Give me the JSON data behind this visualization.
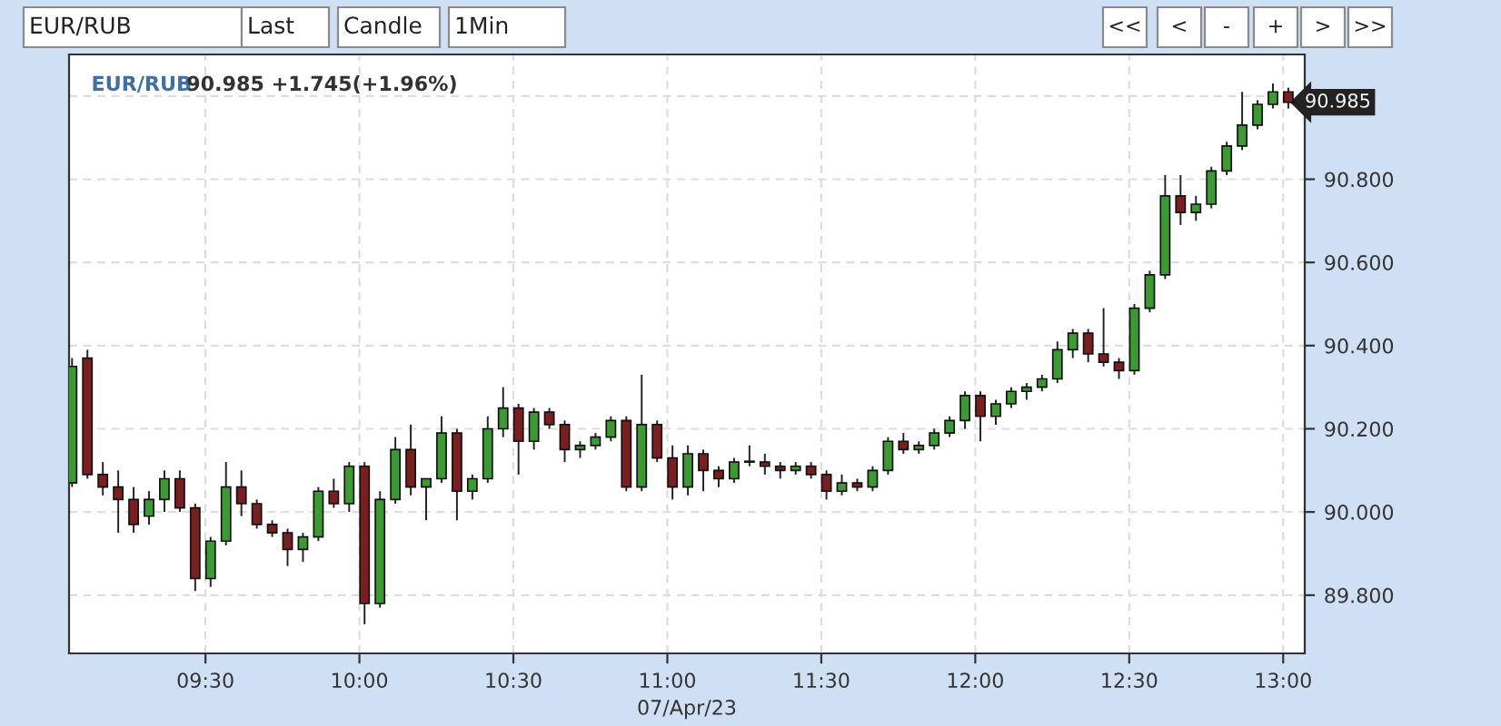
{
  "chart_data": {
    "type": "candlestick",
    "title": "EUR/RUB",
    "subtitle": "90.985 +1.745(+1.96%)",
    "xlabel": "07/Apr/23",
    "annotations": [
      "EUR/RUB",
      "Last",
      "Candle",
      "1Min",
      "<<",
      "<",
      "-",
      "+",
      ">",
      ">>",
      {
        "text": "90.985",
        "x": 13.0167,
        "y": 90.985
      }
    ],
    "x": [
      9.0667,
      9.1167,
      9.1667,
      9.2167,
      9.2667,
      9.3167,
      9.3667,
      9.4167,
      9.4667,
      9.5167,
      9.5667,
      9.6167,
      9.6667,
      9.7167,
      9.7667,
      9.8167,
      9.8667,
      9.9167,
      9.9667,
      10.0167,
      10.0667,
      10.1167,
      10.1667,
      10.2167,
      10.2667,
      10.3167,
      10.3667,
      10.4167,
      10.4667,
      10.5167,
      10.5667,
      10.6167,
      10.6667,
      10.7167,
      10.7667,
      10.8167,
      10.8667,
      10.9167,
      10.9667,
      11.0167,
      11.0667,
      11.1167,
      11.1667,
      11.2167,
      11.2667,
      11.3167,
      11.3667,
      11.4167,
      11.4667,
      11.5167,
      11.5667,
      11.6167,
      11.6667,
      11.7167,
      11.7667,
      11.8167,
      11.8667,
      11.9167,
      11.9667,
      12.0167,
      12.0667,
      12.1167,
      12.1667,
      12.2167,
      12.2667,
      12.3167,
      12.3667,
      12.4167,
      12.4667,
      12.5167,
      12.5667,
      12.6167,
      12.6667,
      12.7167,
      12.7667,
      12.8167,
      12.8667,
      12.9167,
      12.9667,
      13.0167
    ],
    "ohlc": [
      [
        90.07,
        90.37,
        90.06,
        90.35
      ],
      [
        90.37,
        90.39,
        90.08,
        90.09
      ],
      [
        90.09,
        90.12,
        90.04,
        90.06
      ],
      [
        90.06,
        90.1,
        89.95,
        90.03
      ],
      [
        90.03,
        90.06,
        89.95,
        89.97
      ],
      [
        89.99,
        90.05,
        89.97,
        90.03
      ],
      [
        90.03,
        90.1,
        90.0,
        90.08
      ],
      [
        90.08,
        90.1,
        90.0,
        90.01
      ],
      [
        90.01,
        90.02,
        89.81,
        89.84
      ],
      [
        89.84,
        89.94,
        89.82,
        89.93
      ],
      [
        89.93,
        90.12,
        89.92,
        90.06
      ],
      [
        90.06,
        90.1,
        89.99,
        90.02
      ],
      [
        90.02,
        90.03,
        89.96,
        89.97
      ],
      [
        89.97,
        89.98,
        89.94,
        89.95
      ],
      [
        89.95,
        89.96,
        89.87,
        89.91
      ],
      [
        89.91,
        89.95,
        89.88,
        89.94
      ],
      [
        89.94,
        90.06,
        89.93,
        90.05
      ],
      [
        90.05,
        90.08,
        90.01,
        90.02
      ],
      [
        90.02,
        90.12,
        90.0,
        90.11
      ],
      [
        90.11,
        90.12,
        89.73,
        89.78
      ],
      [
        89.78,
        90.05,
        89.77,
        90.03
      ],
      [
        90.03,
        90.18,
        90.02,
        90.15
      ],
      [
        90.15,
        90.21,
        90.04,
        90.06
      ],
      [
        90.06,
        90.08,
        89.98,
        90.08
      ],
      [
        90.08,
        90.23,
        90.07,
        90.19
      ],
      [
        90.19,
        90.2,
        89.98,
        90.05
      ],
      [
        90.05,
        90.09,
        90.03,
        90.08
      ],
      [
        90.08,
        90.23,
        90.07,
        90.2
      ],
      [
        90.2,
        90.3,
        90.18,
        90.25
      ],
      [
        90.25,
        90.26,
        90.09,
        90.17
      ],
      [
        90.17,
        90.25,
        90.15,
        90.24
      ],
      [
        90.24,
        90.25,
        90.2,
        90.21
      ],
      [
        90.21,
        90.22,
        90.12,
        90.15
      ],
      [
        90.15,
        90.17,
        90.13,
        90.16
      ],
      [
        90.16,
        90.19,
        90.15,
        90.18
      ],
      [
        90.18,
        90.23,
        90.17,
        90.22
      ],
      [
        90.22,
        90.23,
        90.05,
        90.06
      ],
      [
        90.06,
        90.33,
        90.05,
        90.21
      ],
      [
        90.21,
        90.22,
        90.12,
        90.13
      ],
      [
        90.13,
        90.16,
        90.03,
        90.06
      ],
      [
        90.06,
        90.16,
        90.04,
        90.14
      ],
      [
        90.14,
        90.15,
        90.05,
        90.1
      ],
      [
        90.1,
        90.11,
        90.06,
        90.08
      ],
      [
        90.08,
        90.13,
        90.07,
        90.12
      ],
      [
        90.12,
        90.16,
        90.11,
        90.12
      ],
      [
        90.12,
        90.14,
        90.09,
        90.11
      ],
      [
        90.11,
        90.12,
        90.08,
        90.1
      ],
      [
        90.1,
        90.12,
        90.09,
        90.11
      ],
      [
        90.11,
        90.12,
        90.08,
        90.09
      ],
      [
        90.09,
        90.1,
        90.03,
        90.05
      ],
      [
        90.05,
        90.09,
        90.04,
        90.07
      ],
      [
        90.07,
        90.08,
        90.05,
        90.06
      ],
      [
        90.06,
        90.11,
        90.05,
        90.1
      ],
      [
        90.1,
        90.18,
        90.09,
        90.17
      ],
      [
        90.17,
        90.19,
        90.14,
        90.15
      ],
      [
        90.15,
        90.17,
        90.14,
        90.16
      ],
      [
        90.16,
        90.2,
        90.15,
        90.19
      ],
      [
        90.19,
        90.23,
        90.18,
        90.22
      ],
      [
        90.22,
        90.29,
        90.2,
        90.28
      ],
      [
        90.28,
        90.29,
        90.17,
        90.23
      ],
      [
        90.23,
        90.27,
        90.21,
        90.26
      ],
      [
        90.26,
        90.3,
        90.25,
        90.29
      ],
      [
        90.29,
        90.31,
        90.27,
        90.3
      ],
      [
        90.3,
        90.33,
        90.29,
        90.32
      ],
      [
        90.32,
        90.41,
        90.31,
        90.39
      ],
      [
        90.39,
        90.44,
        90.37,
        90.43
      ],
      [
        90.43,
        90.44,
        90.36,
        90.38
      ],
      [
        90.38,
        90.49,
        90.35,
        90.36
      ],
      [
        90.36,
        90.37,
        90.32,
        90.34
      ],
      [
        90.34,
        90.5,
        90.33,
        90.49
      ],
      [
        90.49,
        90.58,
        90.48,
        90.57
      ],
      [
        90.57,
        90.81,
        90.56,
        90.76
      ],
      [
        90.76,
        90.81,
        90.69,
        90.72
      ],
      [
        90.72,
        90.76,
        90.7,
        90.74
      ],
      [
        90.74,
        90.83,
        90.73,
        90.82
      ],
      [
        90.82,
        90.89,
        90.81,
        90.88
      ],
      [
        90.88,
        91.01,
        90.87,
        90.93
      ],
      [
        90.93,
        90.99,
        90.92,
        90.98
      ],
      [
        90.98,
        91.03,
        90.97,
        91.01
      ],
      [
        91.01,
        91.02,
        90.97,
        90.985
      ]
    ],
    "colors": [
      "#3c9a32",
      "#7a1f1f",
      "#7a1f1f",
      "#7a1f1f",
      "#7a1f1f",
      "#3c9a32",
      "#3c9a32",
      "#7a1f1f",
      "#7a1f1f",
      "#3c9a32",
      "#3c9a32",
      "#7a1f1f",
      "#7a1f1f",
      "#7a1f1f",
      "#7a1f1f",
      "#3c9a32",
      "#3c9a32",
      "#7a1f1f",
      "#3c9a32",
      "#7a1f1f",
      "#3c9a32",
      "#3c9a32",
      "#7a1f1f",
      "#3c9a32",
      "#3c9a32",
      "#7a1f1f",
      "#3c9a32",
      "#3c9a32",
      "#3c9a32",
      "#7a1f1f",
      "#3c9a32",
      "#7a1f1f",
      "#7a1f1f",
      "#3c9a32",
      "#3c9a32",
      "#3c9a32",
      "#7a1f1f",
      "#3c9a32",
      "#7a1f1f",
      "#7a1f1f",
      "#3c9a32",
      "#7a1f1f",
      "#7a1f1f",
      "#3c9a32",
      "#3c9a32",
      "#7a1f1f",
      "#7a1f1f",
      "#3c9a32",
      "#7a1f1f",
      "#7a1f1f",
      "#3c9a32",
      "#7a1f1f",
      "#3c9a32",
      "#3c9a32",
      "#7a1f1f",
      "#3c9a32",
      "#3c9a32",
      "#3c9a32",
      "#3c9a32",
      "#7a1f1f",
      "#3c9a32",
      "#3c9a32",
      "#3c9a32",
      "#3c9a32",
      "#3c9a32",
      "#3c9a32",
      "#7a1f1f",
      "#7a1f1f",
      "#7a1f1f",
      "#3c9a32",
      "#3c9a32",
      "#3c9a32",
      "#7a1f1f",
      "#3c9a32",
      "#3c9a32",
      "#3c9a32",
      "#3c9a32",
      "#3c9a32",
      "#3c9a32",
      "#7a1f1f"
    ],
    "xlim": [
      9.057,
      13.07
    ],
    "xticks": [
      {
        "value": 9.5,
        "label": "09:30"
      },
      {
        "value": 10.0,
        "label": "10:00"
      },
      {
        "value": 10.5,
        "label": "10:30"
      },
      {
        "value": 11.0,
        "label": "11:00"
      },
      {
        "value": 11.5,
        "label": "11:30"
      },
      {
        "value": 12.0,
        "label": "12:00"
      },
      {
        "value": 12.5,
        "label": "12:30"
      },
      {
        "value": 13.0,
        "label": "13:00"
      }
    ],
    "ylim": [
      89.66,
      91.1
    ],
    "yticks": [
      {
        "value": 89.8,
        "label": "89.800"
      },
      {
        "value": 90.0,
        "label": "90.000"
      },
      {
        "value": 90.2,
        "label": "90.200"
      },
      {
        "value": 90.4,
        "label": "90.400"
      },
      {
        "value": 90.6,
        "label": "90.600"
      },
      {
        "value": 90.8,
        "label": "90.800"
      },
      {
        "value": 91.0,
        "label": null
      }
    ],
    "grid": true
  }
}
